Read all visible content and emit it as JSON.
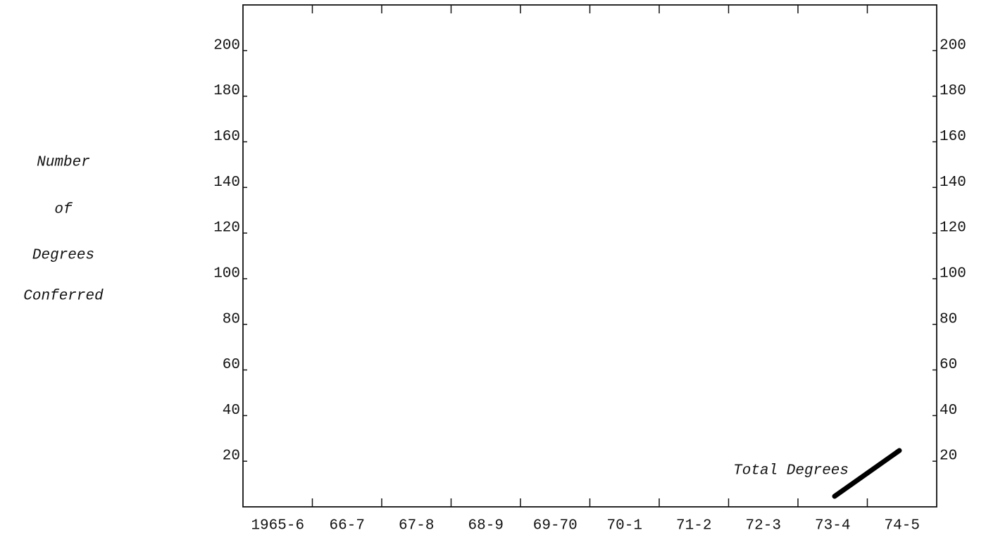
{
  "chart_data": {
    "type": "line",
    "ylabel": [
      "Number",
      "of",
      "Degrees",
      "Conferred"
    ],
    "categories": [
      "1965-6",
      "66-7",
      "67-8",
      "68-9",
      "69-70",
      "70-1",
      "71-2",
      "72-3",
      "73-4",
      "74-5"
    ],
    "series": [
      {
        "name": "Total Degrees",
        "color": "#000000",
        "values": [
          null,
          null,
          null,
          null,
          null,
          null,
          null,
          null,
          null,
          null
        ]
      }
    ],
    "ylim": [
      0,
      220
    ],
    "yticks": [
      20,
      40,
      60,
      80,
      100,
      120,
      140,
      160,
      180,
      200
    ],
    "y2lim": [
      0,
      220
    ],
    "y2ticks": [
      20,
      40,
      60,
      80,
      100,
      120,
      140,
      160,
      180,
      200
    ],
    "grid": false
  }
}
